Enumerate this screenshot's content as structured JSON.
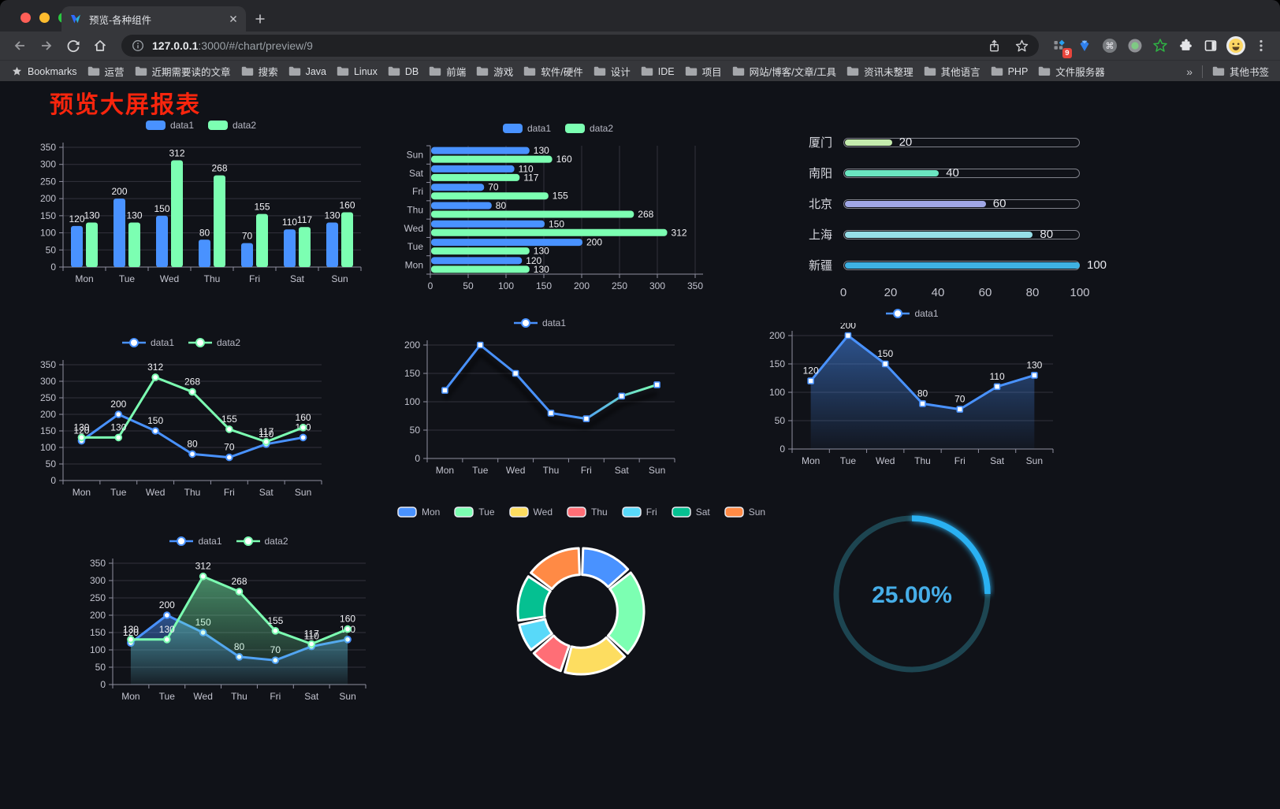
{
  "browser": {
    "tab_title": "预览-各种组件",
    "url": {
      "host": "127.0.0.1",
      "path": ":3000/#/chart/preview/9"
    },
    "extensions_badge": "9",
    "bookmarks_bar": {
      "star_label": "Bookmarks",
      "items": [
        "运营",
        "近期需要读的文章",
        "搜索",
        "Java",
        "Linux",
        "DB",
        "前端",
        "游戏",
        "软件/硬件",
        "设计",
        "IDE",
        "项目",
        "网站/博客/文章/工具",
        "资讯未整理",
        "其他语言",
        "PHP",
        "文件服务器"
      ],
      "overflow": "»",
      "other_bookmarks": "其他书签"
    }
  },
  "page": {
    "title": "预览大屏报表",
    "title_color": "#f8250d",
    "background": "#101218"
  },
  "chart_data": [
    {
      "id": "grouped-bar",
      "type": "bar",
      "categories": [
        "Mon",
        "Tue",
        "Wed",
        "Thu",
        "Fri",
        "Sat",
        "Sun"
      ],
      "series": [
        {
          "name": "data1",
          "color": "#4992ff",
          "values": [
            120,
            200,
            150,
            80,
            70,
            110,
            130
          ]
        },
        {
          "name": "data2",
          "color": "#7cffb2",
          "values": [
            130,
            130,
            312,
            268,
            155,
            117,
            160
          ]
        }
      ],
      "yticks": [
        0,
        50,
        100,
        150,
        200,
        250,
        300,
        350
      ],
      "ylim": [
        0,
        350
      ],
      "legend_position": "top",
      "grid": true
    },
    {
      "id": "horizontal-bar",
      "type": "bar-horizontal",
      "categories": [
        "Mon",
        "Tue",
        "Wed",
        "Thu",
        "Fri",
        "Sat",
        "Sun"
      ],
      "series": [
        {
          "name": "data1",
          "color": "#4992ff",
          "values": [
            120,
            200,
            150,
            80,
            70,
            110,
            130
          ]
        },
        {
          "name": "data2",
          "color": "#7cffb2",
          "values": [
            130,
            130,
            312,
            268,
            155,
            117,
            160
          ]
        }
      ],
      "xticks": [
        0,
        50,
        100,
        150,
        200,
        250,
        300,
        350
      ],
      "xlim": [
        0,
        350
      ],
      "legend_position": "top",
      "grid": true
    },
    {
      "id": "progress-bars",
      "type": "bar-horizontal",
      "items": [
        {
          "label": "厦门",
          "value": 20,
          "color": "#c4ebad"
        },
        {
          "label": "南阳",
          "value": 40,
          "color": "#6be6c1"
        },
        {
          "label": "北京",
          "value": 60,
          "color": "#a0a7e6"
        },
        {
          "label": "上海",
          "value": 80,
          "color": "#96dee8"
        },
        {
          "label": "新疆",
          "value": 100,
          "color": "#3fb1e3"
        }
      ],
      "xticks": [
        0,
        20,
        40,
        60,
        80,
        100
      ],
      "xlim": [
        0,
        100
      ]
    },
    {
      "id": "line-two-series",
      "type": "line",
      "categories": [
        "Mon",
        "Tue",
        "Wed",
        "Thu",
        "Fri",
        "Sat",
        "Sun"
      ],
      "series": [
        {
          "name": "data1",
          "color": "#4992ff",
          "values": [
            120,
            200,
            150,
            80,
            70,
            110,
            130
          ]
        },
        {
          "name": "data2",
          "color": "#7cffb2",
          "values": [
            130,
            130,
            312,
            268,
            155,
            117,
            160
          ]
        }
      ],
      "yticks": [
        0,
        50,
        100,
        150,
        200,
        250,
        300,
        350
      ],
      "ylim": [
        0,
        350
      ],
      "legend_position": "top",
      "point_labels": true
    },
    {
      "id": "line-gradient",
      "type": "line",
      "categories": [
        "Mon",
        "Tue",
        "Wed",
        "Thu",
        "Fri",
        "Sat",
        "Sun"
      ],
      "series": [
        {
          "name": "data1",
          "color": "#4992ff",
          "color_end": "#7cffb2",
          "values": [
            120,
            200,
            150,
            80,
            70,
            110,
            130
          ]
        }
      ],
      "yticks": [
        0,
        50,
        100,
        150,
        200
      ],
      "ylim": [
        0,
        200
      ],
      "legend_position": "top",
      "point_labels": false
    },
    {
      "id": "line-area-single",
      "type": "area",
      "categories": [
        "Mon",
        "Tue",
        "Wed",
        "Thu",
        "Fri",
        "Sat",
        "Sun"
      ],
      "series": [
        {
          "name": "data1",
          "color": "#4992ff",
          "values": [
            120,
            200,
            150,
            80,
            70,
            110,
            130
          ]
        }
      ],
      "yticks": [
        0,
        50,
        100,
        150,
        200
      ],
      "ylim": [
        0,
        200
      ],
      "legend_position": "top",
      "point_labels": true
    },
    {
      "id": "line-area-two-series",
      "type": "area",
      "categories": [
        "Mon",
        "Tue",
        "Wed",
        "Thu",
        "Fri",
        "Sat",
        "Sun"
      ],
      "series": [
        {
          "name": "data1",
          "color": "#4992ff",
          "values": [
            120,
            200,
            150,
            80,
            70,
            110,
            130
          ]
        },
        {
          "name": "data2",
          "color": "#7cffb2",
          "values": [
            130,
            130,
            312,
            268,
            155,
            117,
            160
          ]
        }
      ],
      "yticks": [
        0,
        50,
        100,
        150,
        200,
        250,
        300,
        350
      ],
      "ylim": [
        0,
        350
      ],
      "legend_position": "top",
      "point_labels": true
    },
    {
      "id": "donut",
      "type": "pie",
      "items": [
        {
          "label": "Mon",
          "value": 120,
          "color": "#4992ff"
        },
        {
          "label": "Tue",
          "value": 200,
          "color": "#7cffb2"
        },
        {
          "label": "Wed",
          "value": 150,
          "color": "#fddd60"
        },
        {
          "label": "Thu",
          "value": 80,
          "color": "#ff6e76"
        },
        {
          "label": "Fri",
          "value": 70,
          "color": "#58d9f9"
        },
        {
          "label": "Sat",
          "value": 110,
          "color": "#05c091"
        },
        {
          "label": "Sun",
          "value": 130,
          "color": "#ff8a45"
        }
      ],
      "inner_radius_ratio": 0.58,
      "legend_position": "top"
    },
    {
      "id": "gauge",
      "type": "gauge",
      "value": 25,
      "max": 100,
      "display": "25.00%",
      "color": "#2cb1f2",
      "track_color": "#1d4551",
      "text_color": "#46aee8"
    }
  ]
}
